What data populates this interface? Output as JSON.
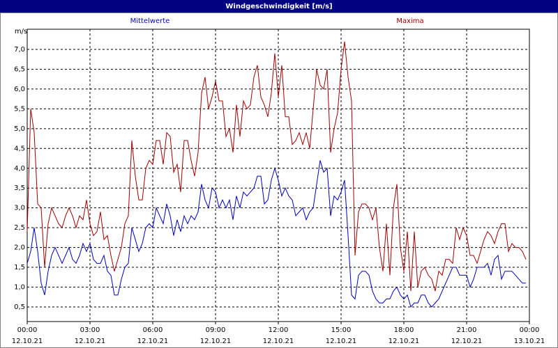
{
  "chart_data": {
    "type": "line",
    "title": "Windgeschwindigkeit [m/s]",
    "y_label": "m/s",
    "xlim": [
      0,
      1440
    ],
    "ylim": [
      0.13,
      7.51
    ],
    "yticks": [
      {
        "value": 0.5,
        "label": "0,5"
      },
      {
        "value": 1.0,
        "label": "1,0"
      },
      {
        "value": 1.5,
        "label": "1,5"
      },
      {
        "value": 2.0,
        "label": "2,0"
      },
      {
        "value": 2.5,
        "label": "2,5"
      },
      {
        "value": 3.0,
        "label": "3,0"
      },
      {
        "value": 3.5,
        "label": "3,5"
      },
      {
        "value": 4.0,
        "label": "4,0"
      },
      {
        "value": 4.5,
        "label": "4,5"
      },
      {
        "value": 5.0,
        "label": "5,0"
      },
      {
        "value": 5.5,
        "label": "5,5"
      },
      {
        "value": 6.0,
        "label": "6,0"
      },
      {
        "value": 6.5,
        "label": "6,5"
      },
      {
        "value": 7.0,
        "label": "7,0"
      }
    ],
    "xticks": [
      {
        "value": 0,
        "label": "00:00"
      },
      {
        "value": 180,
        "label": "03:00"
      },
      {
        "value": 360,
        "label": "06:00"
      },
      {
        "value": 540,
        "label": "09:00"
      },
      {
        "value": 720,
        "label": "12:00"
      },
      {
        "value": 900,
        "label": "15:00"
      },
      {
        "value": 1080,
        "label": "18:00"
      },
      {
        "value": 1260,
        "label": "21:00"
      },
      {
        "value": 1440,
        "label": "00:00"
      }
    ],
    "xtick_dates": [
      "12.10.21",
      "12.10.21",
      "12.10.21",
      "12.10.21",
      "12.10.21",
      "12.10.21",
      "12.10.21",
      "12.10.21",
      "13.10.21"
    ],
    "grid": true,
    "x": [
      0,
      10,
      20,
      30,
      40,
      50,
      60,
      70,
      80,
      90,
      100,
      110,
      120,
      130,
      140,
      150,
      160,
      170,
      180,
      190,
      200,
      210,
      220,
      230,
      240,
      250,
      260,
      270,
      280,
      290,
      300,
      310,
      320,
      330,
      340,
      350,
      360,
      370,
      380,
      390,
      400,
      410,
      420,
      430,
      440,
      450,
      460,
      470,
      480,
      490,
      500,
      510,
      520,
      530,
      540,
      550,
      560,
      570,
      580,
      590,
      600,
      610,
      620,
      630,
      640,
      650,
      660,
      670,
      680,
      690,
      700,
      710,
      720,
      730,
      740,
      750,
      760,
      770,
      780,
      790,
      800,
      810,
      820,
      830,
      840,
      850,
      860,
      870,
      880,
      890,
      900,
      910,
      920,
      930,
      940,
      950,
      960,
      970,
      980,
      990,
      1000,
      1010,
      1020,
      1030,
      1040,
      1050,
      1060,
      1070,
      1080,
      1090,
      1100,
      1110,
      1120,
      1130,
      1140,
      1150,
      1160,
      1170,
      1180,
      1190,
      1200,
      1210,
      1220,
      1230,
      1240,
      1250,
      1260,
      1270,
      1280,
      1290,
      1300,
      1310,
      1320,
      1330,
      1340,
      1350,
      1360,
      1370,
      1380,
      1390,
      1400,
      1410,
      1420,
      1430
    ],
    "series": [
      {
        "name": "Mittelwerte",
        "color": "#0000c0",
        "values": [
          1.6,
          1.9,
          2.5,
          1.9,
          1.1,
          0.8,
          1.4,
          1.8,
          2.0,
          1.8,
          1.6,
          1.8,
          2.0,
          1.7,
          1.6,
          1.8,
          2.1,
          1.9,
          2.1,
          1.7,
          1.6,
          1.6,
          1.8,
          1.4,
          1.3,
          0.8,
          0.8,
          1.2,
          1.5,
          1.6,
          2.5,
          2.2,
          1.9,
          2.1,
          2.5,
          2.6,
          2.5,
          3.0,
          2.8,
          2.6,
          3.1,
          2.8,
          2.3,
          2.7,
          2.4,
          2.8,
          2.6,
          2.8,
          2.7,
          2.9,
          3.6,
          3.2,
          3.0,
          3.5,
          3.4,
          3.0,
          3.2,
          3.0,
          3.2,
          2.7,
          3.3,
          3.0,
          3.4,
          3.3,
          3.4,
          3.5,
          3.8,
          3.8,
          3.1,
          3.2,
          3.7,
          4.0,
          3.7,
          3.3,
          3.5,
          3.3,
          3.2,
          2.8,
          2.9,
          3.0,
          2.7,
          2.9,
          3.0,
          3.6,
          4.2,
          3.9,
          4.0,
          2.8,
          3.3,
          3.2,
          3.4,
          3.7,
          2.3,
          0.8,
          0.7,
          1.3,
          1.4,
          1.4,
          1.3,
          0.9,
          0.7,
          0.6,
          0.6,
          0.7,
          0.7,
          0.9,
          1.0,
          0.8,
          0.7,
          0.8,
          0.5,
          0.6,
          0.6,
          0.8,
          0.8,
          0.6,
          0.5,
          0.6,
          0.7,
          0.9,
          1.1,
          1.3,
          1.5,
          1.5,
          1.3,
          1.3,
          1.3,
          1.0,
          1.2,
          1.5,
          1.5,
          1.5,
          1.6,
          1.3,
          1.7,
          1.8,
          1.2,
          1.4,
          1.4,
          1.4,
          1.3,
          1.2,
          1.1,
          1.1
        ]
      },
      {
        "name": "Maxima",
        "color": "#a00000",
        "values": [
          2.4,
          5.5,
          4.9,
          3.1,
          3.0,
          1.5,
          2.6,
          3.0,
          2.8,
          2.6,
          2.5,
          2.8,
          3.0,
          2.8,
          2.5,
          2.8,
          2.7,
          3.2,
          2.6,
          2.3,
          2.4,
          2.9,
          2.2,
          2.3,
          1.8,
          1.4,
          1.7,
          2.0,
          2.6,
          2.8,
          4.7,
          3.8,
          3.2,
          3.2,
          4.0,
          4.2,
          4.1,
          4.7,
          4.7,
          4.1,
          4.9,
          4.8,
          3.9,
          4.1,
          3.4,
          4.7,
          4.7,
          4.2,
          3.8,
          4.4,
          5.9,
          6.3,
          5.5,
          5.8,
          6.2,
          5.7,
          5.7,
          4.8,
          5.0,
          4.4,
          5.6,
          4.8,
          5.7,
          5.5,
          5.6,
          6.3,
          6.6,
          5.8,
          5.6,
          5.3,
          5.9,
          6.9,
          5.8,
          6.6,
          5.3,
          5.3,
          4.6,
          4.7,
          4.9,
          4.6,
          4.9,
          4.5,
          5.5,
          6.5,
          6.1,
          6.0,
          6.5,
          4.4,
          5.0,
          5.4,
          6.5,
          7.2,
          6.3,
          5.7,
          1.8,
          2.9,
          3.1,
          3.1,
          3.0,
          2.7,
          3.0,
          2.0,
          1.4,
          2.6,
          1.3,
          3.0,
          3.6,
          2.0,
          1.4,
          2.4,
          0.9,
          2.4,
          1.0,
          1.4,
          1.5,
          1.3,
          1.2,
          0.9,
          1.4,
          1.3,
          1.7,
          1.7,
          1.6,
          2.5,
          2.2,
          2.5,
          2.3,
          1.8,
          1.8,
          1.6,
          1.9,
          2.2,
          2.4,
          2.3,
          2.1,
          2.4,
          2.6,
          2.6,
          1.9,
          2.1,
          2.0,
          2.0,
          1.9,
          1.7
        ]
      }
    ]
  }
}
